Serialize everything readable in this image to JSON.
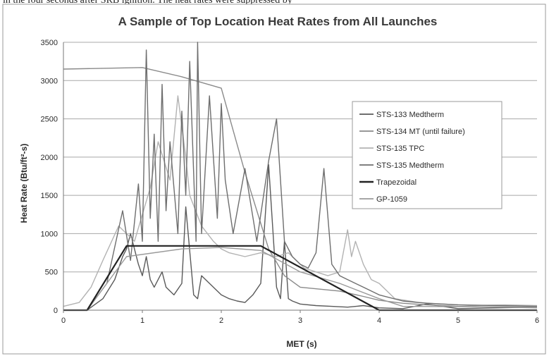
{
  "page": {
    "cut_text": "in the four seconds after SRB ignition. The heat rates were suppressed by"
  },
  "colors": {
    "frame": "#9a9a9a",
    "grid": "#a8a8a8",
    "background": "#ffffff"
  },
  "chart_data": {
    "type": "line",
    "title": "A Sample of Top Location Heat Rates from All Launches",
    "xlabel": "MET (s)",
    "ylabel": "Heat Rate (Btu/ft²-s)",
    "xlim": [
      0,
      6
    ],
    "ylim": [
      0,
      3500
    ],
    "xticks": [
      "0",
      "1",
      "2",
      "3",
      "4",
      "5",
      "6"
    ],
    "yticks": [
      "0",
      "500",
      "1000",
      "1500",
      "2000",
      "2500",
      "3000",
      "3500"
    ],
    "grid": "horizontal",
    "legend_position": "right",
    "series": [
      {
        "name": "STS-133 Medtherm",
        "color": "#5a5a5a",
        "x": [
          0.3,
          0.5,
          0.65,
          0.75,
          0.8,
          0.85,
          0.95,
          1.0,
          1.05,
          1.1,
          1.15,
          1.25,
          1.3,
          1.4,
          1.5,
          1.55,
          1.65,
          1.7,
          1.75,
          1.85,
          2.0,
          2.1,
          2.2,
          2.3,
          2.4,
          2.5,
          2.6,
          2.7,
          2.75,
          2.8,
          2.85,
          2.9,
          3.0,
          3.2,
          3.4,
          3.6,
          3.8,
          4.0,
          4.3,
          4.6,
          5.0,
          5.5,
          6.0
        ],
        "y": [
          0,
          150,
          400,
          700,
          800,
          1000,
          600,
          450,
          700,
          400,
          300,
          500,
          300,
          200,
          350,
          1350,
          200,
          150,
          450,
          350,
          200,
          150,
          120,
          100,
          200,
          350,
          1900,
          300,
          150,
          900,
          150,
          120,
          80,
          60,
          50,
          40,
          60,
          30,
          20,
          80,
          20,
          30,
          40
        ]
      },
      {
        "name": "STS-134 MT (until failure)",
        "color": "#8a8a8a",
        "x": [
          0.0,
          1.0,
          1.5,
          2.0,
          2.3,
          2.6,
          2.8,
          3.0,
          3.5,
          3.8,
          4.0,
          4.3,
          4.6,
          5.0,
          5.5,
          6.0
        ],
        "y": [
          3150,
          3170,
          3050,
          2900,
          1800,
          800,
          450,
          300,
          250,
          180,
          130,
          90,
          70,
          50,
          40,
          30
        ]
      },
      {
        "name": "STS-135 TPC",
        "color": "#b2b2b2",
        "x": [
          0.0,
          0.2,
          0.35,
          0.5,
          0.7,
          0.9,
          1.1,
          1.2,
          1.35,
          1.45,
          1.55,
          1.6,
          1.75,
          1.9,
          2.0,
          2.1,
          2.3,
          2.5,
          2.7,
          2.85,
          2.95,
          3.05,
          3.2,
          3.35,
          3.5,
          3.6,
          3.65,
          3.7,
          3.8,
          3.9,
          4.0,
          4.2,
          4.5,
          4.8,
          5.2,
          5.6,
          6.0
        ],
        "y": [
          50,
          100,
          300,
          650,
          1100,
          900,
          1600,
          2200,
          1700,
          2800,
          2000,
          1500,
          1100,
          900,
          800,
          750,
          700,
          750,
          700,
          750,
          650,
          550,
          500,
          450,
          500,
          1050,
          700,
          900,
          600,
          400,
          350,
          150,
          100,
          80,
          60,
          70,
          60
        ]
      },
      {
        "name": "STS-135 Medtherm",
        "color": "#6e6e6e",
        "x": [
          0.3,
          0.55,
          0.75,
          0.85,
          0.95,
          1.0,
          1.05,
          1.1,
          1.15,
          1.2,
          1.25,
          1.3,
          1.35,
          1.45,
          1.5,
          1.55,
          1.6,
          1.68,
          1.7,
          1.75,
          1.85,
          1.95,
          2.0,
          2.05,
          2.15,
          2.3,
          2.45,
          2.6,
          2.7,
          2.8,
          2.9,
          3.0,
          3.1,
          3.2,
          3.3,
          3.4,
          3.5,
          3.6,
          3.8,
          4.0,
          4.3,
          4.6,
          5.0,
          5.5,
          6.0
        ],
        "y": [
          0,
          350,
          1300,
          650,
          1650,
          900,
          3400,
          1200,
          2300,
          900,
          2950,
          1300,
          2200,
          1000,
          2600,
          1500,
          3250,
          900,
          3500,
          1000,
          2800,
          1200,
          2700,
          1700,
          1000,
          1850,
          900,
          1950,
          2500,
          900,
          700,
          600,
          550,
          750,
          1850,
          600,
          450,
          400,
          300,
          200,
          120,
          90,
          70,
          60,
          50
        ]
      },
      {
        "name": "Trapezoidal",
        "color": "#222222",
        "x": [
          0.0,
          0.3,
          0.8,
          2.5,
          4.0,
          6.0
        ],
        "y": [
          0,
          0,
          840,
          840,
          0,
          0
        ]
      },
      {
        "name": "GP-1059",
        "color": "#9a9a9a",
        "x": [
          0.3,
          0.8,
          1.5,
          2.0,
          2.5,
          3.0,
          3.5,
          4.0,
          4.3,
          6.0
        ],
        "y": [
          0,
          700,
          800,
          820,
          780,
          500,
          350,
          150,
          50,
          40
        ]
      }
    ]
  }
}
